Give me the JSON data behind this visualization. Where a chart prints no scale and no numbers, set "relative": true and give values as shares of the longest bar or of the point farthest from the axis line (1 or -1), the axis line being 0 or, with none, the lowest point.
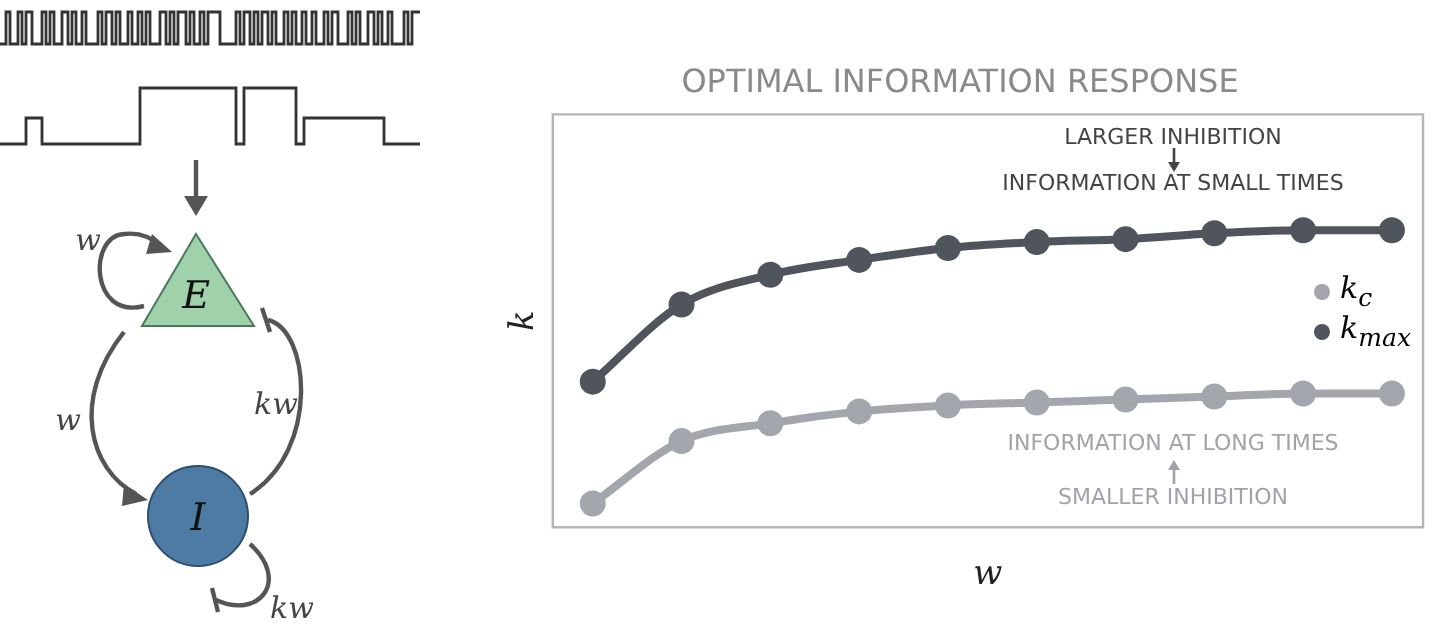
{
  "chart_data": [
    {
      "type": "other",
      "annotations": [
        "w",
        "E",
        "kw",
        "w",
        "I",
        "kw"
      ]
    },
    {
      "type": "line",
      "title": "OPTIMAL INFORMATION RESPONSE",
      "xlabel": "w",
      "ylabel": "k",
      "relative": true,
      "categories": [
        null,
        null,
        null,
        null,
        null,
        null,
        null,
        null,
        null,
        null
      ],
      "series": [
        {
          "name": "k$_{c}$",
          "color": "#a3a6ad",
          "values": [
            0.08,
            0.29,
            0.35,
            0.39,
            0.41,
            0.42,
            0.43,
            0.44,
            0.45,
            0.45
          ]
        },
        {
          "name": "k$_{max}$",
          "color": "#50545c",
          "values": [
            0.49,
            0.75,
            0.85,
            0.9,
            0.94,
            0.96,
            0.97,
            0.99,
            1,
            1
          ]
        }
      ],
      "marker": "circle",
      "legend": "right",
      "grid": false,
      "annotations": [
        "LARGER INHIBITION",
        "INFORMATION AT SMALL TIMES",
        "INFORMATION AT LONG TIMES",
        "SMALLER INHIBITION"
      ]
    }
  ]
}
